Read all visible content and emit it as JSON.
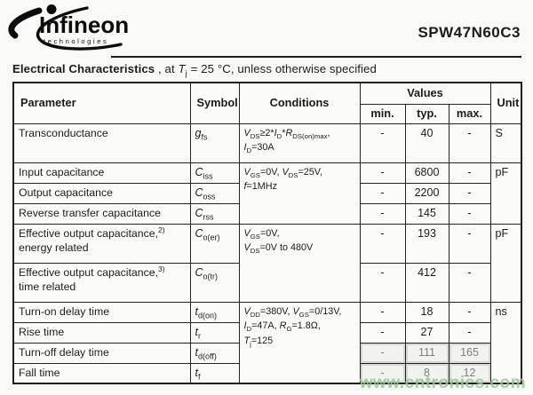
{
  "header": {
    "brand": {
      "name": "Infineon",
      "sub": "technologies"
    },
    "part_number": "SPW47N60C3"
  },
  "title": {
    "bold": "Electrical Characteristics",
    "rest": " , at T_[j] = 25 °C, unless otherwise specified"
  },
  "table": {
    "columns": {
      "parameter": "Parameter",
      "symbol": "Symbol",
      "conditions": "Conditions",
      "values": "Values",
      "min": "min.",
      "typ": "typ.",
      "max": "max.",
      "unit": "Unit"
    },
    "rows": [
      {
        "param": [
          "Transconductance"
        ],
        "symbol": "g_[fs]",
        "cond": [
          "V_[DS]≥2*I_[D]*R_[DS(on)max],",
          "I_[D]=30A"
        ],
        "min": "-",
        "typ": "40",
        "max": "-",
        "unit": "S"
      },
      {
        "param": [
          "Input capacitance"
        ],
        "symbol": "C_[iss]",
        "cond": [
          "V_[GS]=0V, V_[DS]=25V,",
          "f_[]=1MHz"
        ],
        "min": "-",
        "typ": "6800",
        "max": "-",
        "unit": "pF"
      },
      {
        "param": [
          "Output capacitance"
        ],
        "symbol": "C_[oss]",
        "min": "-",
        "typ": "2200",
        "max": "-"
      },
      {
        "param": [
          "Reverse transfer capacitance"
        ],
        "symbol": "C_[rss]",
        "min": "-",
        "typ": "145",
        "max": "-"
      },
      {
        "param": [
          "Effective output capacitance,^[2)]",
          "energy related"
        ],
        "symbol": "C_[o(er)]",
        "cond": [
          "V_[GS]=0V,",
          "V_[DS]=0V to 480V"
        ],
        "min": "-",
        "typ": "193",
        "max": "-",
        "unit": "pF"
      },
      {
        "param": [
          "Effective output capacitance,^[3)]",
          "time related"
        ],
        "symbol": "C_[o(tr)]",
        "min": "-",
        "typ": "412",
        "max": "-"
      },
      {
        "param": [
          "Turn-on delay time"
        ],
        "symbol": "t_[d(on)]",
        "cond": [
          "V_[DD]=380V, V_[GS]=0/13V,",
          "I_[D]=47A, R_[G]=1.8Ω,",
          "T_[j]=125"
        ],
        "min": "-",
        "typ": "18",
        "max": "-",
        "unit": "ns"
      },
      {
        "param": [
          "Rise time"
        ],
        "symbol": "t_[r]",
        "min": "-",
        "typ": "27",
        "max": "-"
      },
      {
        "param": [
          "Turn-off delay time"
        ],
        "symbol": "t_[d(off)]",
        "min": "-",
        "typ": "111",
        "max": "165"
      },
      {
        "param": [
          "Fall time"
        ],
        "symbol": "t_[f]",
        "min": "-",
        "typ": "8",
        "max": "12"
      }
    ]
  },
  "watermark": {
    "text": "www.cntronics.com",
    "color": "#96c896"
  }
}
